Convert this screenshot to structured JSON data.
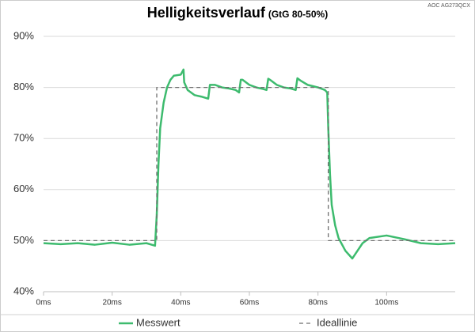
{
  "chart_data": {
    "type": "line",
    "title": "Helligkeitsverlauf",
    "subtitle": "(GtG 80-50%)",
    "watermark": "AOC AG273QCX",
    "xlim": [
      0,
      120
    ],
    "ylim": [
      40,
      90
    ],
    "xticks": [
      {
        "value": 0,
        "label": "0ms"
      },
      {
        "value": 20,
        "label": "20ms"
      },
      {
        "value": 40,
        "label": "40ms"
      },
      {
        "value": 60,
        "label": "60ms"
      },
      {
        "value": 80,
        "label": "80ms"
      },
      {
        "value": 100,
        "label": "100ms"
      }
    ],
    "yticks": [
      {
        "value": 40,
        "label": "40%"
      },
      {
        "value": 50,
        "label": "50%"
      },
      {
        "value": 60,
        "label": "60%"
      },
      {
        "value": 70,
        "label": "70%"
      },
      {
        "value": 80,
        "label": "80%"
      },
      {
        "value": 90,
        "label": "90%"
      }
    ],
    "grid": true,
    "legend": "bottom",
    "series": [
      {
        "name": "Messwert",
        "color": "#3dbb6e",
        "dash": false,
        "x": [
          0,
          5,
          10,
          15,
          20,
          25,
          30,
          32.5,
          33,
          33.5,
          34,
          35,
          36,
          37,
          38,
          40,
          40.8,
          41,
          42,
          44,
          46,
          48,
          48.5,
          50,
          52,
          54,
          56,
          57,
          57.5,
          58,
          60,
          62,
          64,
          65,
          65.5,
          66,
          68,
          70,
          72,
          73.5,
          74,
          75,
          77,
          80,
          82,
          82.7,
          83,
          83.5,
          84,
          85,
          86,
          88,
          90,
          91,
          93,
          95,
          100,
          105,
          110,
          115,
          120
        ],
        "values": [
          49.5,
          49.3,
          49.5,
          49.2,
          49.6,
          49.2,
          49.5,
          49.0,
          55,
          65,
          72,
          77,
          80,
          81.5,
          82.3,
          82.5,
          83.5,
          81,
          79.5,
          78.5,
          78.2,
          77.8,
          80.5,
          80.5,
          80,
          79.8,
          79.5,
          79,
          81.5,
          81.5,
          80.5,
          80,
          79.7,
          79.5,
          81.7,
          81.5,
          80.5,
          80,
          79.8,
          79.5,
          81.8,
          81.3,
          80.5,
          80,
          79.5,
          79,
          72,
          63,
          57,
          53,
          50.5,
          48,
          46.5,
          47.5,
          49.5,
          50.5,
          51,
          50.3,
          49.5,
          49.3,
          49.5
        ]
      },
      {
        "name": "Ideallinie",
        "color": "#707070",
        "dash": true,
        "x": [
          0,
          33,
          33,
          83,
          83,
          120
        ],
        "values": [
          50,
          50,
          80,
          80,
          50,
          50
        ]
      }
    ]
  }
}
